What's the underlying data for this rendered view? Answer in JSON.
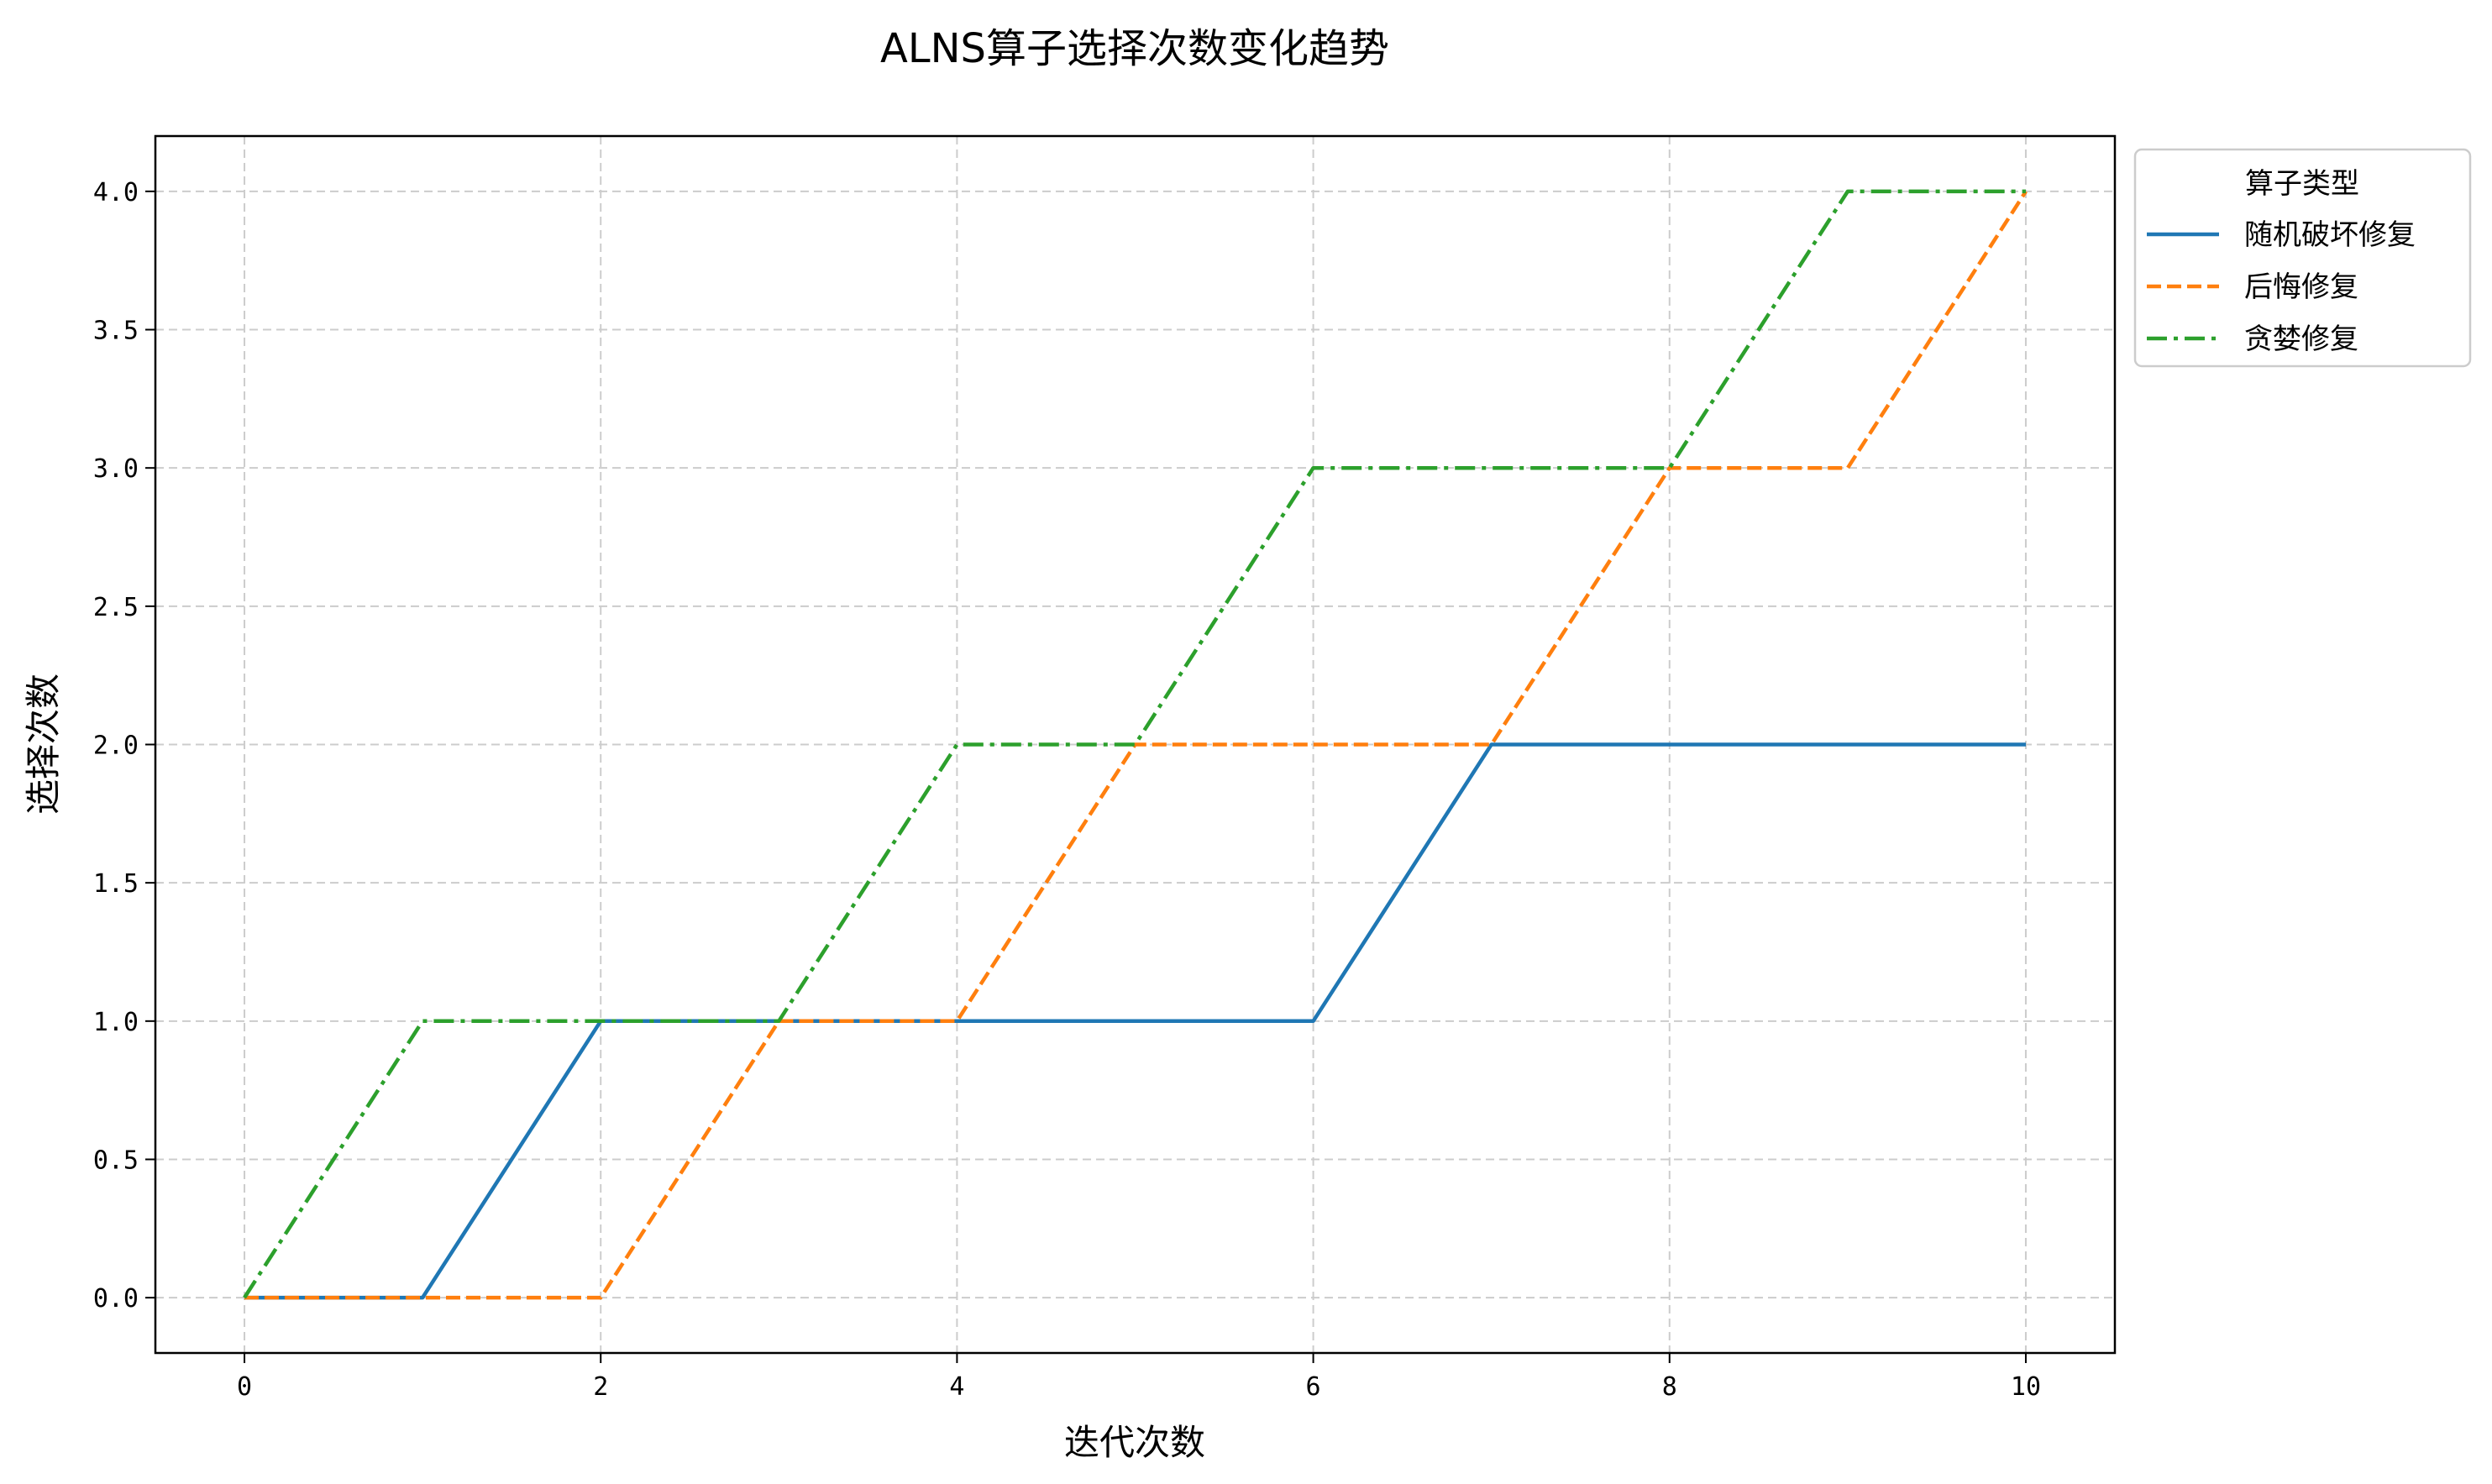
{
  "chart_data": {
    "type": "line",
    "title": "ALNS算子选择次数变化趋势",
    "xlabel": "迭代次数",
    "ylabel": "选择次数",
    "xlim": [
      -0.5,
      10.5
    ],
    "ylim": [
      -0.2,
      4.2
    ],
    "xticks": [
      0,
      2,
      4,
      6,
      8,
      10
    ],
    "yticks": [
      0.0,
      0.5,
      1.0,
      1.5,
      2.0,
      2.5,
      3.0,
      3.5,
      4.0
    ],
    "xtick_labels": [
      "0",
      "2",
      "4",
      "6",
      "8",
      "10"
    ],
    "ytick_labels": [
      "0.0",
      "0.5",
      "1.0",
      "1.5",
      "2.0",
      "2.5",
      "3.0",
      "3.5",
      "4.0"
    ],
    "grid": true,
    "legend": {
      "title": "算子类型",
      "placement": "outside-top-right"
    },
    "x": [
      0,
      1,
      2,
      3,
      4,
      5,
      6,
      7,
      8,
      9,
      10
    ],
    "series": [
      {
        "name": "随机破坏修复",
        "color": "#1f77b4",
        "style": "solid",
        "values": [
          0,
          0,
          1,
          1,
          1,
          1,
          1,
          2,
          2,
          2,
          2
        ]
      },
      {
        "name": "后悔修复",
        "color": "#ff7f0e",
        "style": "dashed",
        "values": [
          0,
          0,
          0,
          1,
          1,
          2,
          2,
          2,
          3,
          3,
          4
        ]
      },
      {
        "name": "贪婪修复",
        "color": "#2ca02c",
        "style": "dashdot",
        "values": [
          0,
          1,
          1,
          1,
          2,
          2,
          3,
          3,
          3,
          4,
          4
        ]
      }
    ]
  }
}
